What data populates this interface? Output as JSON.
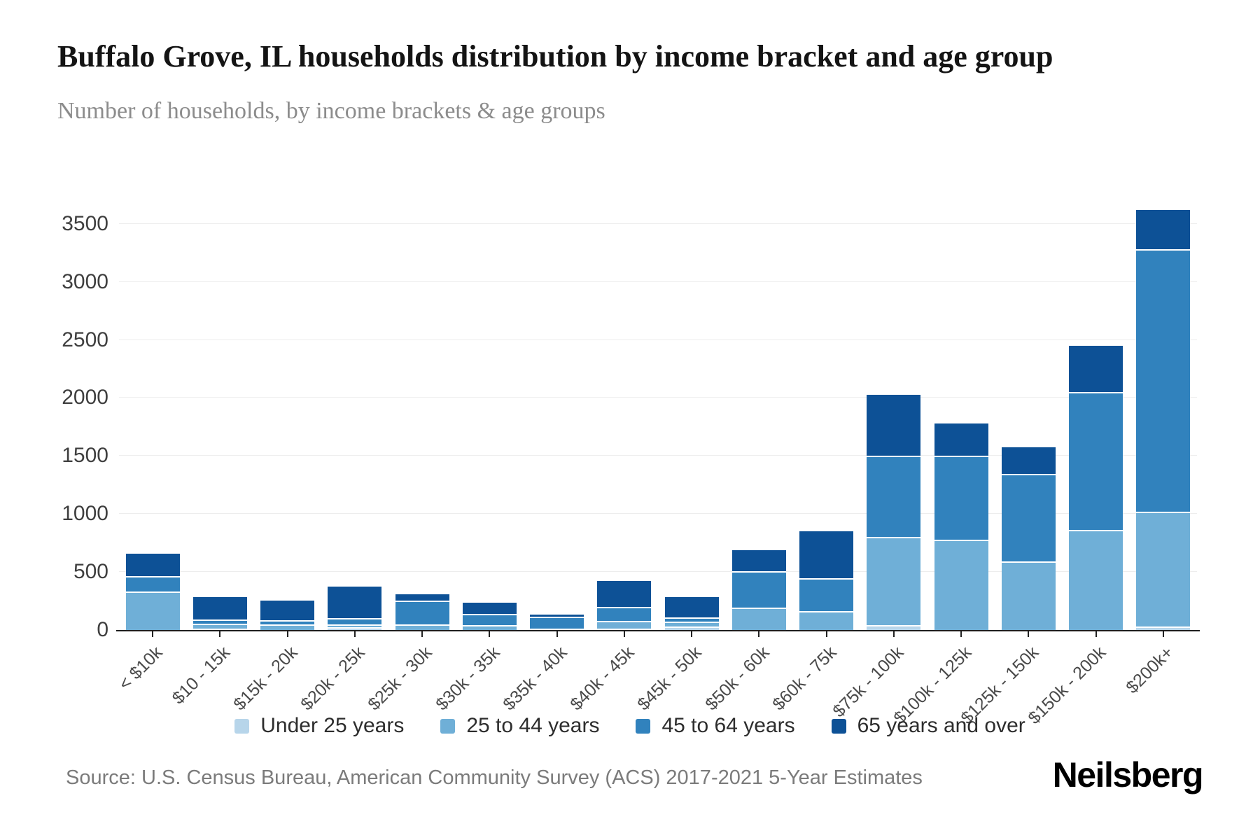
{
  "header": {
    "title": "Buffalo Grove, IL households distribution by income bracket and age group",
    "subtitle": "Number of households, by income brackets & age groups"
  },
  "footer": {
    "source": "Source: U.S. Census Bureau, American Community Survey (ACS) 2017-2021 5-Year Estimates",
    "logo": "Neilsberg"
  },
  "chart_data": {
    "type": "bar",
    "stacked": true,
    "title": "Buffalo Grove, IL households distribution by income bracket and age group",
    "subtitle": "Number of households, by income brackets & age groups",
    "xlabel": "",
    "ylabel": "Number of households",
    "grid": true,
    "legend_position": "bottom",
    "ylim": [
      0,
      3740
    ],
    "yticks": [
      0,
      500,
      1000,
      1500,
      2000,
      2500,
      3000,
      3500
    ],
    "categories": [
      "< $10k",
      "$10 - 15k",
      "$15k - 20k",
      "$20k - 25k",
      "$25k - 30k",
      "$30k - 35k",
      "$35k - 40k",
      "$40k - 45k",
      "$45k - 50k",
      "$50k - 60k",
      "$60k - 75k",
      "$75k - 100k",
      "$100k - 125k",
      "$125k - 150k",
      "$150k - 200k",
      "$200k+"
    ],
    "series": [
      {
        "name": "Under 25 years",
        "color": "#b7d5ea",
        "values": [
          0,
          15,
          0,
          25,
          0,
          0,
          0,
          5,
          30,
          0,
          0,
          40,
          0,
          0,
          0,
          30
        ]
      },
      {
        "name": "25 to 44 years",
        "color": "#6fafd7",
        "values": [
          330,
          40,
          50,
          25,
          50,
          45,
          15,
          65,
          40,
          195,
          160,
          760,
          780,
          590,
          860,
          990
        ]
      },
      {
        "name": "45 to 64 years",
        "color": "#3182bd",
        "values": [
          135,
          35,
          35,
          55,
          205,
          95,
          100,
          120,
          40,
          310,
          285,
          700,
          720,
          755,
          1190,
          2260
        ]
      },
      {
        "name": "65 years and over",
        "color": "#0d5196",
        "values": [
          190,
          195,
          170,
          270,
          55,
          95,
          20,
          225,
          175,
          180,
          405,
          530,
          280,
          230,
          400,
          340
        ]
      }
    ],
    "totals": [
      655,
      285,
      255,
      375,
      310,
      235,
      135,
      415,
      285,
      685,
      850,
      2030,
      1780,
      1575,
      2450,
      3620
    ]
  }
}
